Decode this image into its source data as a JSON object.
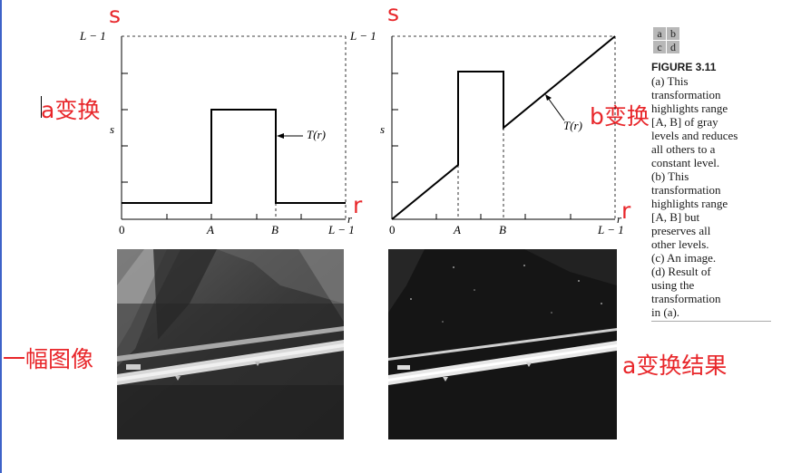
{
  "annotations": {
    "s_left": "s",
    "s_right": "s",
    "r_left": "r",
    "r_right": "r",
    "a_transform": "a变换",
    "b_transform": "b变换",
    "one_image": "一幅图像",
    "a_result": "a变换结果"
  },
  "plot_a": {
    "y_top": "L − 1",
    "y_mid": "s",
    "x_axis_r": "r",
    "x_ticks": [
      "0",
      "A",
      "B",
      "L − 1"
    ],
    "curve_label": "T(r)"
  },
  "plot_b": {
    "y_top": "L − 1",
    "y_mid": "s",
    "x_axis_r": "r",
    "x_ticks": [
      "0",
      "A",
      "B",
      "L − 1"
    ],
    "curve_label": "T(r)"
  },
  "caption": {
    "panels": [
      "a",
      "b",
      "c",
      "d"
    ],
    "title": "FIGURE 3.11",
    "lines": [
      "(a) This",
      "transformation",
      "highlights range",
      "[A, B] of gray",
      "levels and reduces",
      "all others to a",
      "constant level.",
      "(b) This",
      "transformation",
      "highlights range",
      "[A, B] but",
      "preserves all",
      "other levels.",
      "(c) An image.",
      "(d) Result of",
      "using the",
      "transformation",
      "in (a)."
    ]
  },
  "colors": {
    "annotation": "#e8262a",
    "edge_line": "#3d62c8"
  }
}
